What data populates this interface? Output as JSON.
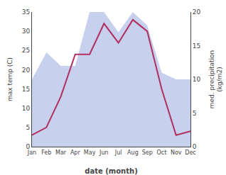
{
  "chart_data": {
    "type": "line",
    "categories": [
      "Jan",
      "Feb",
      "Mar",
      "Apr",
      "May",
      "Jun",
      "Jul",
      "Aug",
      "Sep",
      "Oct",
      "Nov",
      "Dec"
    ],
    "xlabel": "date (month)",
    "ylabel": "max temp (C)",
    "y2label": "med. precipitation\n(kg/m2)",
    "series": [
      {
        "type": "area",
        "axis": "y2",
        "color": "#99aadd",
        "values": [
          10,
          14,
          12,
          12,
          20,
          20,
          17,
          20,
          18,
          11,
          10,
          10
        ]
      },
      {
        "type": "line",
        "color": "#b03060",
        "values": [
          3,
          5,
          13,
          24,
          24,
          32,
          27,
          33,
          30,
          15,
          3,
          4
        ]
      }
    ],
    "ylim": [
      0,
      35
    ],
    "yticks": [
      0,
      5,
      10,
      15,
      20,
      25,
      30,
      35
    ],
    "y2lim": [
      0,
      20
    ],
    "y2ticks": [
      0,
      5,
      10,
      15,
      20
    ],
    "grid": false
  }
}
